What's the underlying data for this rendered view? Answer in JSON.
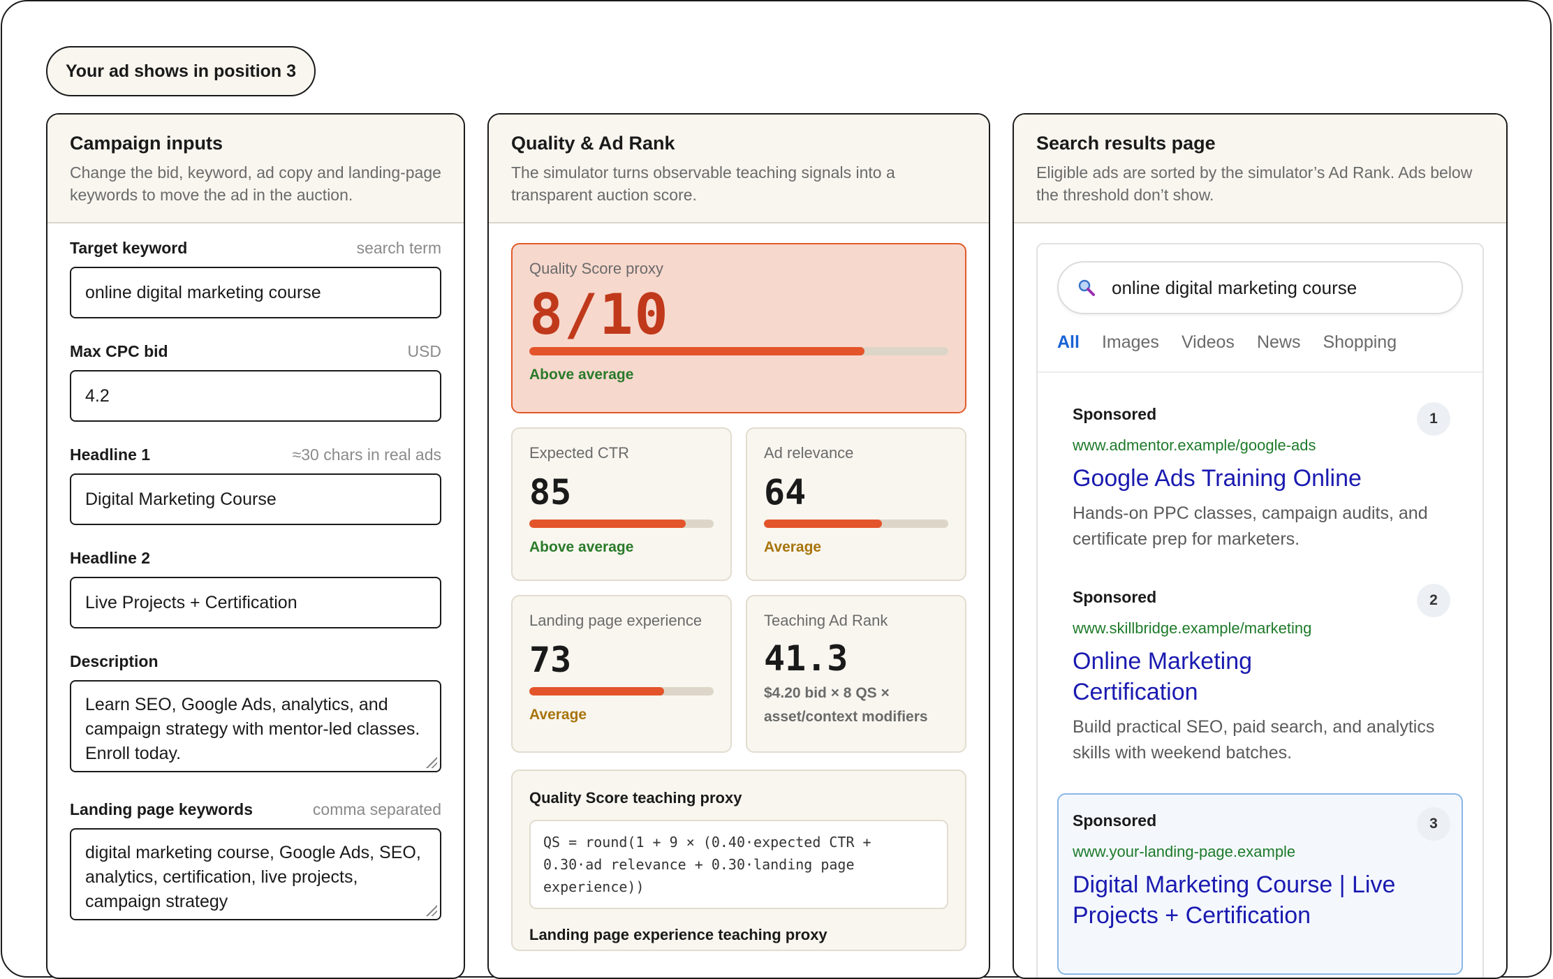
{
  "position_pill": "Your ad shows in position 3",
  "campaign": {
    "title": "Campaign inputs",
    "subtitle": "Change the bid, keyword, ad copy and landing-page keywords to move the ad in the auction.",
    "fields": {
      "keyword": {
        "label": "Target keyword",
        "hint": "search term",
        "value": "online digital marketing course"
      },
      "bid": {
        "label": "Max CPC bid",
        "hint": "USD",
        "value": "4.2"
      },
      "headline1": {
        "label": "Headline 1",
        "hint": "≈30 chars in real ads",
        "value": "Digital Marketing Course"
      },
      "headline2": {
        "label": "Headline 2",
        "value": "Live Projects + Certification"
      },
      "description": {
        "label": "Description",
        "value": "Learn SEO, Google Ads, analytics, and campaign strategy with mentor-led classes. Enroll today."
      },
      "landing": {
        "label": "Landing page keywords",
        "hint": "comma separated",
        "value": "digital marketing course, Google Ads, SEO, analytics, certification, live projects, campaign strategy"
      }
    }
  },
  "quality": {
    "title": "Quality & Ad Rank",
    "subtitle": "The simulator turns observable teaching signals into a transparent auction score.",
    "qs": {
      "label": "Quality Score proxy",
      "value": "8/10",
      "fill": 0.8,
      "status": "Above average"
    },
    "ctr": {
      "label": "Expected CTR",
      "value": "85",
      "fill": 0.85,
      "status": "Above average"
    },
    "relevance": {
      "label": "Ad relevance",
      "value": "64",
      "fill": 0.64,
      "status": "Average"
    },
    "landing": {
      "label": "Landing page experience",
      "value": "73",
      "fill": 0.73,
      "status": "Average"
    },
    "adrank": {
      "label": "Teaching Ad Rank",
      "value": "41.3",
      "note": "$4.20 bid × 8 QS × asset/context modifiers"
    },
    "formula": {
      "title": "Quality Score teaching proxy",
      "text": "QS = round(1 + 9 × (0.40·expected CTR + 0.30·ad relevance + 0.30·landing page experience))",
      "next_title": "Landing page experience teaching proxy"
    }
  },
  "serp": {
    "title": "Search results page",
    "subtitle": "Eligible ads are sorted by the simulator’s Ad Rank. Ads below the threshold don’t show.",
    "query": "online digital marketing course",
    "tabs": [
      "All",
      "Images",
      "Videos",
      "News",
      "Shopping"
    ],
    "ads": [
      {
        "label": "Sponsored",
        "rank": "1",
        "url": "www.admentor.example/google-ads",
        "title": "Google Ads Training Online",
        "desc": "Hands-on PPC classes, campaign audits, and certificate prep for marketers."
      },
      {
        "label": "Sponsored",
        "rank": "2",
        "url": "www.skillbridge.example/marketing",
        "title": "Online Marketing Certification",
        "desc": "Build practical SEO, paid search, and analytics skills with weekend batches."
      },
      {
        "label": "Sponsored",
        "rank": "3",
        "url": "www.your-landing-page.example",
        "title": "Digital Marketing Course | Live Projects + Certification"
      }
    ]
  },
  "colors": {
    "accent": "#e4542a",
    "good": "#2a7a2a",
    "average": "#a8740d",
    "link": "#1a1ab0",
    "url": "#1e7a2a"
  }
}
